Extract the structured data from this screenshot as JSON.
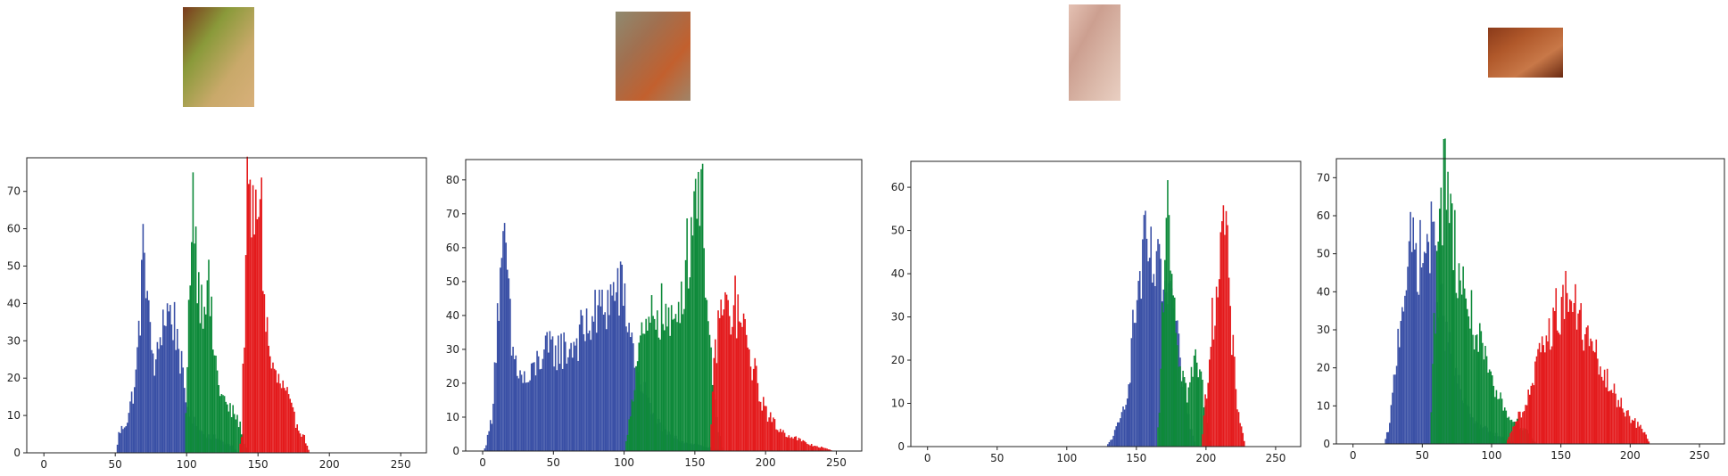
{
  "colors": {
    "red": "#e41a1c",
    "green": "#0e8a3a",
    "blue": "#3a50a6",
    "axes": "#222222"
  },
  "chart_data": [
    {
      "type": "bar",
      "thumbnail": {
        "colors": [
          "#7a3a1c",
          "#8a9a3a",
          "#c9a96a",
          "#d8b07a"
        ]
      },
      "xlim": [
        -12,
        268
      ],
      "ylim": [
        0,
        79
      ],
      "xticks": [
        0,
        50,
        100,
        150,
        200,
        250
      ],
      "yticks": [
        0,
        10,
        20,
        30,
        40,
        50,
        60,
        70
      ],
      "series": [
        {
          "color": "blue",
          "peaks": [
            [
              50,
              0
            ],
            [
              52,
              5
            ],
            [
              58,
              9
            ],
            [
              64,
              20
            ],
            [
              68,
              45
            ],
            [
              70,
              58
            ],
            [
              74,
              30
            ],
            [
              78,
              22
            ],
            [
              82,
              35
            ],
            [
              86,
              38
            ],
            [
              90,
              36
            ],
            [
              94,
              30
            ],
            [
              98,
              15
            ],
            [
              102,
              10
            ],
            [
              108,
              6
            ],
            [
              120,
              4
            ],
            [
              130,
              2
            ],
            [
              136,
              0
            ]
          ]
        },
        {
          "color": "green",
          "peaks": [
            [
              98,
              0
            ],
            [
              100,
              20
            ],
            [
              102,
              55
            ],
            [
              104,
              72
            ],
            [
              106,
              55
            ],
            [
              110,
              40
            ],
            [
              114,
              48
            ],
            [
              118,
              30
            ],
            [
              122,
              18
            ],
            [
              128,
              12
            ],
            [
              134,
              10
            ],
            [
              138,
              6
            ],
            [
              142,
              0
            ]
          ]
        },
        {
          "color": "red",
          "peaks": [
            [
              136,
              0
            ],
            [
              138,
              5
            ],
            [
              140,
              35
            ],
            [
              142,
              65
            ],
            [
              144,
              66
            ],
            [
              148,
              60
            ],
            [
              151,
              76
            ],
            [
              154,
              40
            ],
            [
              158,
              25
            ],
            [
              162,
              20
            ],
            [
              166,
              18
            ],
            [
              170,
              15
            ],
            [
              174,
              10
            ],
            [
              178,
              7
            ],
            [
              182,
              4
            ],
            [
              186,
              0
            ]
          ]
        }
      ]
    },
    {
      "type": "bar",
      "thumbnail": {
        "colors": [
          "#8f8a70",
          "#a07050",
          "#c2602e",
          "#a08468"
        ]
      },
      "xlim": [
        -12,
        268
      ],
      "ylim": [
        0,
        86
      ],
      "xticks": [
        0,
        50,
        100,
        150,
        200,
        250
      ],
      "yticks": [
        0,
        10,
        20,
        30,
        40,
        50,
        60,
        70,
        80
      ],
      "series": [
        {
          "color": "blue",
          "peaks": [
            [
              0,
              0
            ],
            [
              2,
              2
            ],
            [
              6,
              10
            ],
            [
              10,
              40
            ],
            [
              14,
              55
            ],
            [
              16,
              60
            ],
            [
              20,
              30
            ],
            [
              26,
              22
            ],
            [
              32,
              20
            ],
            [
              40,
              28
            ],
            [
              50,
              30
            ],
            [
              60,
              30
            ],
            [
              70,
              35
            ],
            [
              80,
              40
            ],
            [
              90,
              45
            ],
            [
              96,
              48
            ],
            [
              100,
              44
            ],
            [
              106,
              30
            ],
            [
              112,
              20
            ],
            [
              120,
              10
            ],
            [
              130,
              5
            ],
            [
              140,
              3
            ],
            [
              150,
              2
            ],
            [
              160,
              1
            ],
            [
              170,
              0
            ]
          ]
        },
        {
          "color": "green",
          "peaks": [
            [
              100,
              0
            ],
            [
              104,
              12
            ],
            [
              110,
              30
            ],
            [
              116,
              35
            ],
            [
              122,
              42
            ],
            [
              128,
              40
            ],
            [
              134,
              35
            ],
            [
              140,
              48
            ],
            [
              146,
              62
            ],
            [
              150,
              78
            ],
            [
              152,
              84
            ],
            [
              155,
              70
            ],
            [
              158,
              50
            ],
            [
              162,
              20
            ],
            [
              166,
              5
            ],
            [
              170,
              0
            ]
          ]
        },
        {
          "color": "red",
          "peaks": [
            [
              160,
              0
            ],
            [
              162,
              18
            ],
            [
              166,
              38
            ],
            [
              170,
              42
            ],
            [
              174,
              40
            ],
            [
              178,
              43
            ],
            [
              184,
              35
            ],
            [
              190,
              26
            ],
            [
              196,
              16
            ],
            [
              202,
              10
            ],
            [
              210,
              6
            ],
            [
              220,
              4
            ],
            [
              230,
              2
            ],
            [
              240,
              1
            ],
            [
              248,
              0
            ]
          ]
        }
      ]
    },
    {
      "type": "bar",
      "thumbnail": {
        "colors": [
          "#e4c1b3",
          "#cc9f90",
          "#dbb9aa",
          "#e9cfc2"
        ]
      },
      "xlim": [
        -12,
        268
      ],
      "ylim": [
        0,
        66
      ],
      "xticks": [
        0,
        50,
        100,
        150,
        200,
        250
      ],
      "yticks": [
        0,
        10,
        20,
        30,
        40,
        50,
        60
      ],
      "series": [
        {
          "color": "blue",
          "peaks": [
            [
              128,
              0
            ],
            [
              132,
              2
            ],
            [
              138,
              6
            ],
            [
              144,
              15
            ],
            [
              148,
              30
            ],
            [
              152,
              38
            ],
            [
              156,
              46
            ],
            [
              160,
              42
            ],
            [
              164,
              40
            ],
            [
              168,
              38
            ],
            [
              172,
              33
            ],
            [
              176,
              30
            ],
            [
              180,
              22
            ],
            [
              184,
              12
            ],
            [
              188,
              5
            ],
            [
              192,
              0
            ]
          ]
        },
        {
          "color": "green",
          "peaks": [
            [
              164,
              0
            ],
            [
              166,
              10
            ],
            [
              168,
              30
            ],
            [
              170,
              48
            ],
            [
              172,
              63
            ],
            [
              174,
              50
            ],
            [
              176,
              38
            ],
            [
              180,
              22
            ],
            [
              186,
              12
            ],
            [
              192,
              20
            ],
            [
              196,
              16
            ],
            [
              200,
              6
            ],
            [
              204,
              0
            ]
          ]
        },
        {
          "color": "red",
          "peaks": [
            [
              196,
              0
            ],
            [
              198,
              6
            ],
            [
              202,
              22
            ],
            [
              206,
              35
            ],
            [
              210,
              45
            ],
            [
              212,
              53
            ],
            [
              214,
              48
            ],
            [
              218,
              25
            ],
            [
              222,
              10
            ],
            [
              226,
              3
            ],
            [
              228,
              0
            ]
          ]
        }
      ]
    },
    {
      "type": "bar",
      "thumbnail": {
        "colors": [
          "#8a3a1a",
          "#b0582a",
          "#c87848",
          "#6a2a12"
        ]
      },
      "xlim": [
        -12,
        268
      ],
      "ylim": [
        0,
        75
      ],
      "xticks": [
        0,
        50,
        100,
        150,
        200,
        250
      ],
      "yticks": [
        0,
        10,
        20,
        30,
        40,
        50,
        60,
        70
      ],
      "series": [
        {
          "color": "blue",
          "peaks": [
            [
              22,
              0
            ],
            [
              26,
              5
            ],
            [
              30,
              20
            ],
            [
              34,
              35
            ],
            [
              38,
              45
            ],
            [
              42,
              52
            ],
            [
              46,
              50
            ],
            [
              50,
              48
            ],
            [
              54,
              55
            ],
            [
              58,
              50
            ],
            [
              62,
              40
            ],
            [
              66,
              30
            ],
            [
              72,
              20
            ],
            [
              80,
              10
            ],
            [
              90,
              5
            ],
            [
              100,
              3
            ],
            [
              110,
              1
            ],
            [
              120,
              0
            ],
            [
              170,
              0
            ]
          ]
        },
        {
          "color": "green",
          "peaks": [
            [
              55,
              0
            ],
            [
              58,
              30
            ],
            [
              62,
              55
            ],
            [
              66,
              75
            ],
            [
              68,
              70
            ],
            [
              72,
              55
            ],
            [
              76,
              45
            ],
            [
              80,
              40
            ],
            [
              86,
              32
            ],
            [
              92,
              25
            ],
            [
              100,
              15
            ],
            [
              108,
              10
            ],
            [
              116,
              6
            ],
            [
              124,
              4
            ],
            [
              132,
              0
            ]
          ]
        },
        {
          "color": "red",
          "peaks": [
            [
              110,
              0
            ],
            [
              114,
              4
            ],
            [
              120,
              8
            ],
            [
              126,
              12
            ],
            [
              132,
              20
            ],
            [
              138,
              26
            ],
            [
              144,
              33
            ],
            [
              150,
              37
            ],
            [
              156,
              40
            ],
            [
              160,
              35
            ],
            [
              166,
              30
            ],
            [
              172,
              25
            ],
            [
              178,
              20
            ],
            [
              186,
              14
            ],
            [
              194,
              10
            ],
            [
              202,
              6
            ],
            [
              210,
              3
            ],
            [
              214,
              0
            ]
          ]
        }
      ]
    }
  ]
}
